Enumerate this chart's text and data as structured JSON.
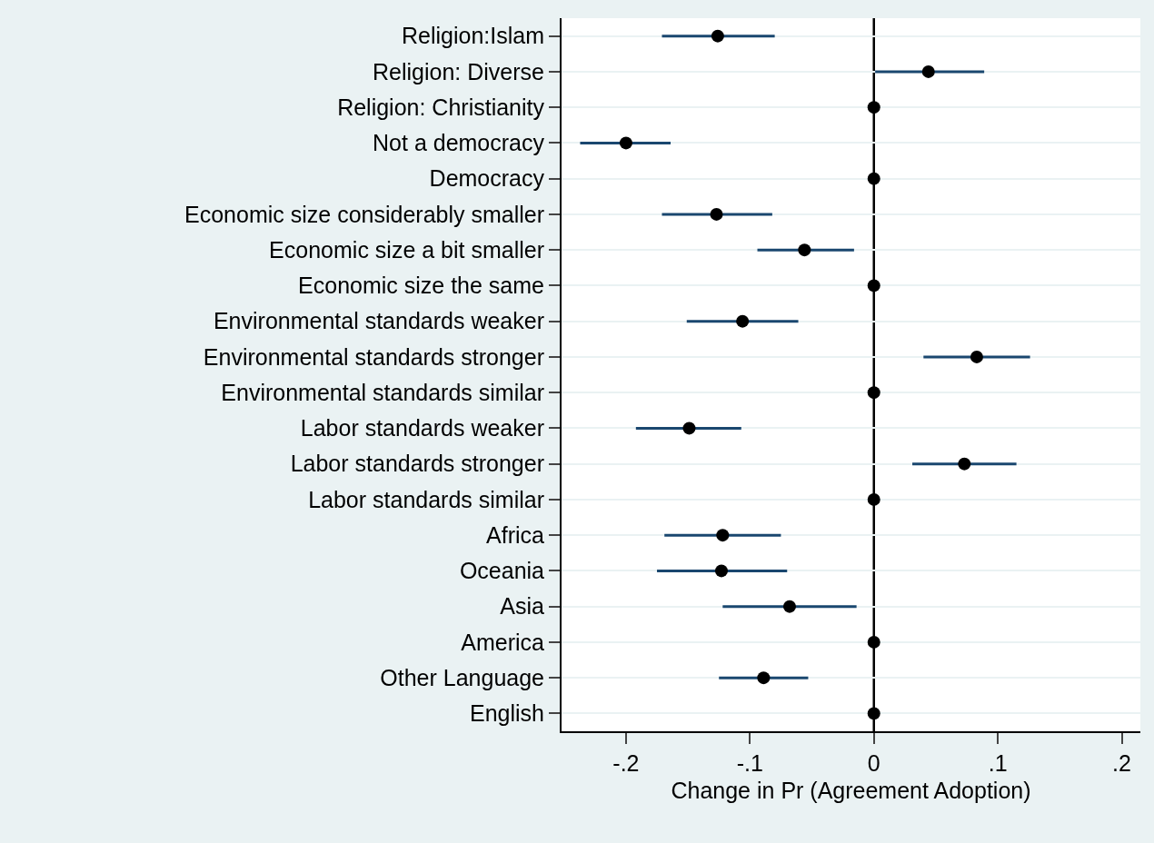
{
  "chart_data": {
    "type": "scatter",
    "orientation": "horizontal",
    "xlabel": "Change in Pr (Agreement Adoption)",
    "categories": [
      "Religion:Islam",
      "Religion: Diverse",
      "Religion: Christianity",
      "Not a democracy",
      "Democracy",
      "Economic size considerably smaller",
      "Economic size a bit smaller",
      "Economic size the same",
      "Environmental standards weaker",
      "Environmental standards stronger",
      "Environmental standards similar",
      "Labor standards weaker",
      "Labor standards stronger",
      "Labor standards similar",
      "Africa",
      "Oceania",
      "Asia",
      "America",
      "Other Language",
      "English"
    ],
    "values": [
      -0.126,
      0.044,
      0,
      -0.2,
      0,
      -0.127,
      -0.056,
      0,
      -0.106,
      0.083,
      0,
      -0.149,
      0.073,
      0,
      -0.122,
      -0.123,
      -0.068,
      0,
      -0.089,
      0
    ],
    "errors": [
      [
        -0.171,
        -0.08
      ],
      [
        0.001,
        0.089
      ],
      null,
      [
        -0.237,
        -0.164
      ],
      null,
      [
        -0.171,
        -0.082
      ],
      [
        -0.094,
        -0.016
      ],
      null,
      [
        -0.151,
        -0.061
      ],
      [
        0.04,
        0.126
      ],
      null,
      [
        -0.192,
        -0.107
      ],
      [
        0.031,
        0.115
      ],
      null,
      [
        -0.169,
        -0.075
      ],
      [
        -0.175,
        -0.07
      ],
      [
        -0.122,
        -0.014
      ],
      null,
      [
        -0.125,
        -0.053
      ],
      null
    ],
    "color": "#000000",
    "marker": "circle",
    "grid": "y",
    "xlim": [
      -0.252,
      0.215
    ],
    "xticks": [
      {
        "value": -0.2,
        "label": "-.2"
      },
      {
        "value": -0.1,
        "label": "-.1"
      },
      0,
      {
        "value": 0.1,
        "label": ".1"
      },
      {
        "value": 0.2,
        "label": ".2"
      }
    ],
    "ref_lines": [
      {
        "axis": "x",
        "value": 0,
        "color": "#000000"
      }
    ]
  }
}
